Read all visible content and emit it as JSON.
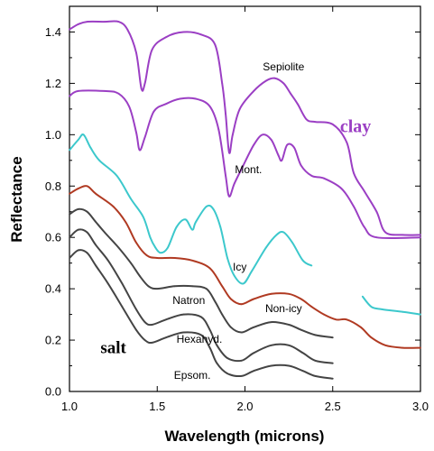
{
  "chart_data": {
    "type": "line",
    "title": "",
    "xlabel": "Wavelength (microns)",
    "ylabel": "Reflectance",
    "xlim": [
      1.0,
      3.0
    ],
    "ylim": [
      0.0,
      1.5
    ],
    "xticks": [
      1.0,
      1.5,
      2.0,
      2.5,
      3.0
    ],
    "xtick_labels": [
      "1.0",
      "1.5",
      "2.0",
      "2.5",
      "3.0"
    ],
    "yticks": [
      0.0,
      0.2,
      0.4,
      0.6,
      0.8,
      1.0,
      1.2,
      1.4
    ],
    "ytick_labels": [
      "0.0",
      "0.2",
      "0.4",
      "0.6",
      "0.8",
      "1.0",
      "1.2",
      "1.4"
    ],
    "grid": false,
    "series": [
      {
        "key": "sepiolite",
        "color": "#9b3fc4",
        "points": [
          [
            1.0,
            1.41
          ],
          [
            1.05,
            1.43
          ],
          [
            1.1,
            1.44
          ],
          [
            1.2,
            1.44
          ],
          [
            1.28,
            1.44
          ],
          [
            1.33,
            1.41
          ],
          [
            1.38,
            1.32
          ],
          [
            1.41,
            1.18
          ],
          [
            1.43,
            1.2
          ],
          [
            1.47,
            1.33
          ],
          [
            1.55,
            1.38
          ],
          [
            1.65,
            1.4
          ],
          [
            1.75,
            1.39
          ],
          [
            1.83,
            1.35
          ],
          [
            1.87,
            1.2
          ],
          [
            1.89,
            1.08
          ],
          [
            1.91,
            0.93
          ],
          [
            1.93,
            1.0
          ],
          [
            1.97,
            1.1
          ],
          [
            2.05,
            1.17
          ],
          [
            2.12,
            1.21
          ],
          [
            2.17,
            1.22
          ],
          [
            2.22,
            1.2
          ],
          [
            2.26,
            1.16
          ],
          [
            2.3,
            1.12
          ],
          [
            2.35,
            1.06
          ],
          [
            2.4,
            1.05
          ],
          [
            2.5,
            1.04
          ],
          [
            2.58,
            0.97
          ],
          [
            2.62,
            0.85
          ],
          [
            2.68,
            0.78
          ],
          [
            2.75,
            0.7
          ],
          [
            2.8,
            0.62
          ],
          [
            2.9,
            0.61
          ],
          [
            3.0,
            0.61
          ]
        ]
      },
      {
        "key": "montmorillonite",
        "color": "#9b3fc4",
        "points": [
          [
            1.0,
            1.15
          ],
          [
            1.05,
            1.17
          ],
          [
            1.2,
            1.17
          ],
          [
            1.28,
            1.16
          ],
          [
            1.34,
            1.11
          ],
          [
            1.38,
            1.01
          ],
          [
            1.4,
            0.94
          ],
          [
            1.43,
            0.99
          ],
          [
            1.48,
            1.09
          ],
          [
            1.55,
            1.12
          ],
          [
            1.63,
            1.14
          ],
          [
            1.72,
            1.14
          ],
          [
            1.8,
            1.11
          ],
          [
            1.85,
            1.02
          ],
          [
            1.89,
            0.84
          ],
          [
            1.91,
            0.76
          ],
          [
            1.94,
            0.81
          ],
          [
            1.99,
            0.88
          ],
          [
            2.05,
            0.96
          ],
          [
            2.1,
            1.0
          ],
          [
            2.15,
            0.98
          ],
          [
            2.19,
            0.92
          ],
          [
            2.21,
            0.9
          ],
          [
            2.24,
            0.96
          ],
          [
            2.28,
            0.95
          ],
          [
            2.32,
            0.88
          ],
          [
            2.38,
            0.84
          ],
          [
            2.45,
            0.83
          ],
          [
            2.55,
            0.79
          ],
          [
            2.62,
            0.72
          ],
          [
            2.68,
            0.64
          ],
          [
            2.75,
            0.6
          ],
          [
            3.0,
            0.6
          ]
        ]
      },
      {
        "key": "icy",
        "color": "#3cc8cc",
        "points": [
          [
            1.0,
            0.94
          ],
          [
            1.05,
            0.98
          ],
          [
            1.08,
            1.0
          ],
          [
            1.12,
            0.95
          ],
          [
            1.17,
            0.9
          ],
          [
            1.27,
            0.84
          ],
          [
            1.35,
            0.75
          ],
          [
            1.42,
            0.68
          ],
          [
            1.46,
            0.6
          ],
          [
            1.49,
            0.56
          ],
          [
            1.52,
            0.54
          ],
          [
            1.56,
            0.56
          ],
          [
            1.61,
            0.64
          ],
          [
            1.66,
            0.67
          ],
          [
            1.7,
            0.63
          ],
          [
            1.72,
            0.66
          ],
          [
            1.78,
            0.72
          ],
          [
            1.82,
            0.71
          ],
          [
            1.86,
            0.64
          ],
          [
            1.9,
            0.52
          ],
          [
            1.94,
            0.45
          ],
          [
            1.99,
            0.42
          ],
          [
            2.04,
            0.47
          ],
          [
            2.12,
            0.56
          ],
          [
            2.18,
            0.61
          ],
          [
            2.22,
            0.62
          ],
          [
            2.27,
            0.58
          ],
          [
            2.33,
            0.51
          ],
          [
            2.38,
            0.49
          ]
        ]
      },
      {
        "key": "icy_tail",
        "color": "#3cc8cc",
        "points": [
          [
            2.67,
            0.37
          ],
          [
            2.72,
            0.33
          ],
          [
            2.78,
            0.32
          ],
          [
            2.9,
            0.31
          ],
          [
            3.0,
            0.3
          ]
        ]
      },
      {
        "key": "non_icy",
        "color": "#b03a22",
        "points": [
          [
            1.0,
            0.77
          ],
          [
            1.05,
            0.79
          ],
          [
            1.1,
            0.8
          ],
          [
            1.15,
            0.77
          ],
          [
            1.25,
            0.72
          ],
          [
            1.32,
            0.66
          ],
          [
            1.38,
            0.58
          ],
          [
            1.44,
            0.53
          ],
          [
            1.5,
            0.52
          ],
          [
            1.6,
            0.52
          ],
          [
            1.7,
            0.51
          ],
          [
            1.8,
            0.48
          ],
          [
            1.87,
            0.41
          ],
          [
            1.92,
            0.36
          ],
          [
            1.98,
            0.34
          ],
          [
            2.05,
            0.36
          ],
          [
            2.15,
            0.38
          ],
          [
            2.25,
            0.38
          ],
          [
            2.32,
            0.36
          ],
          [
            2.38,
            0.33
          ],
          [
            2.45,
            0.3
          ],
          [
            2.52,
            0.28
          ],
          [
            2.58,
            0.28
          ],
          [
            2.66,
            0.25
          ],
          [
            2.72,
            0.21
          ],
          [
            2.8,
            0.18
          ],
          [
            2.9,
            0.17
          ],
          [
            3.0,
            0.17
          ]
        ]
      },
      {
        "key": "natron",
        "color": "#444444",
        "points": [
          [
            1.0,
            0.69
          ],
          [
            1.05,
            0.71
          ],
          [
            1.1,
            0.7
          ],
          [
            1.15,
            0.66
          ],
          [
            1.2,
            0.62
          ],
          [
            1.28,
            0.56
          ],
          [
            1.35,
            0.5
          ],
          [
            1.4,
            0.45
          ],
          [
            1.45,
            0.41
          ],
          [
            1.5,
            0.4
          ],
          [
            1.6,
            0.41
          ],
          [
            1.7,
            0.41
          ],
          [
            1.78,
            0.4
          ],
          [
            1.83,
            0.35
          ],
          [
            1.87,
            0.3
          ],
          [
            1.92,
            0.25
          ],
          [
            1.98,
            0.23
          ],
          [
            2.05,
            0.25
          ],
          [
            2.15,
            0.27
          ],
          [
            2.25,
            0.26
          ],
          [
            2.32,
            0.24
          ],
          [
            2.4,
            0.22
          ],
          [
            2.5,
            0.21
          ]
        ]
      },
      {
        "key": "hexahydrite",
        "color": "#444444",
        "points": [
          [
            1.0,
            0.6
          ],
          [
            1.05,
            0.63
          ],
          [
            1.1,
            0.62
          ],
          [
            1.15,
            0.57
          ],
          [
            1.22,
            0.51
          ],
          [
            1.3,
            0.42
          ],
          [
            1.38,
            0.32
          ],
          [
            1.43,
            0.27
          ],
          [
            1.47,
            0.26
          ],
          [
            1.55,
            0.28
          ],
          [
            1.65,
            0.3
          ],
          [
            1.75,
            0.29
          ],
          [
            1.8,
            0.24
          ],
          [
            1.84,
            0.18
          ],
          [
            1.9,
            0.13
          ],
          [
            1.98,
            0.12
          ],
          [
            2.05,
            0.15
          ],
          [
            2.15,
            0.18
          ],
          [
            2.25,
            0.18
          ],
          [
            2.33,
            0.15
          ],
          [
            2.4,
            0.12
          ],
          [
            2.5,
            0.11
          ]
        ]
      },
      {
        "key": "epsomite",
        "color": "#444444",
        "points": [
          [
            1.0,
            0.52
          ],
          [
            1.05,
            0.55
          ],
          [
            1.1,
            0.54
          ],
          [
            1.15,
            0.49
          ],
          [
            1.22,
            0.42
          ],
          [
            1.3,
            0.33
          ],
          [
            1.38,
            0.24
          ],
          [
            1.43,
            0.2
          ],
          [
            1.47,
            0.19
          ],
          [
            1.55,
            0.21
          ],
          [
            1.65,
            0.23
          ],
          [
            1.75,
            0.22
          ],
          [
            1.8,
            0.17
          ],
          [
            1.84,
            0.11
          ],
          [
            1.9,
            0.07
          ],
          [
            1.98,
            0.06
          ],
          [
            2.05,
            0.08
          ],
          [
            2.15,
            0.1
          ],
          [
            2.25,
            0.1
          ],
          [
            2.33,
            0.08
          ],
          [
            2.4,
            0.06
          ],
          [
            2.5,
            0.05
          ]
        ]
      }
    ],
    "annotations": [
      {
        "key": "sepiolite_label",
        "text": "Sepiolite",
        "x": 2.22,
        "y": 1.25
      },
      {
        "key": "mont_label",
        "text": "Mont.",
        "x": 2.02,
        "y": 0.85
      },
      {
        "key": "icy_label",
        "text": "Icy",
        "x": 1.97,
        "y": 0.47
      },
      {
        "key": "non_icy_label",
        "text": "Non-icy",
        "x": 2.22,
        "y": 0.31
      },
      {
        "key": "natron_label",
        "text": "Natron",
        "x": 1.68,
        "y": 0.34
      },
      {
        "key": "hexahyd_label",
        "text": "Hexahyd.",
        "x": 1.74,
        "y": 0.19
      },
      {
        "key": "epsom_label",
        "text": "Epsom.",
        "x": 1.7,
        "y": 0.05
      }
    ],
    "group_labels": [
      {
        "key": "clay",
        "text": "clay",
        "x": 2.63,
        "y": 1.01,
        "color": "#9b3fc4"
      },
      {
        "key": "salt",
        "text": "salt",
        "x": 1.25,
        "y": 0.15,
        "color": "#000000"
      }
    ]
  }
}
